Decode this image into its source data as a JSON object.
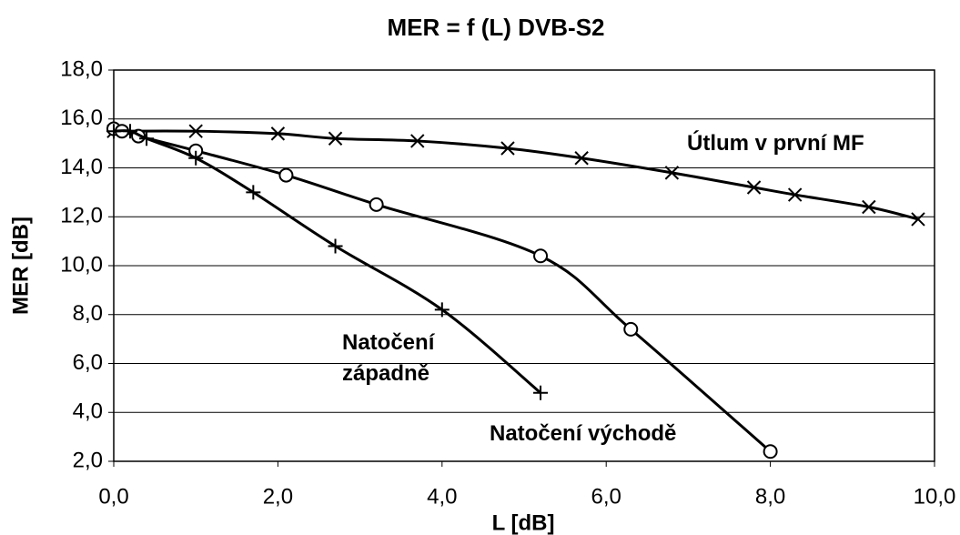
{
  "chart_data": {
    "type": "scatter",
    "title": "MER = f (L)     DVB-S2",
    "xlabel": "L [dB]",
    "ylabel": "MER [dB]",
    "xlim": [
      0,
      10
    ],
    "ylim": [
      2,
      18
    ],
    "xticks": [
      {
        "value": 0,
        "label": "0,0"
      },
      {
        "value": 2,
        "label": "2,0"
      },
      {
        "value": 4,
        "label": "4,0"
      },
      {
        "value": 6,
        "label": "6,0"
      },
      {
        "value": 8,
        "label": "8,0"
      },
      {
        "value": 10,
        "label": "10,0"
      }
    ],
    "yticks": [
      {
        "value": 2,
        "label": "2,0"
      },
      {
        "value": 4,
        "label": "4,0"
      },
      {
        "value": 6,
        "label": "6,0"
      },
      {
        "value": 8,
        "label": "8,0"
      },
      {
        "value": 10,
        "label": "10,0"
      },
      {
        "value": 12,
        "label": "12,0"
      },
      {
        "value": 14,
        "label": "14,0"
      },
      {
        "value": 16,
        "label": "16,0"
      },
      {
        "value": 18,
        "label": "18,0"
      }
    ],
    "grid": true,
    "series": [
      {
        "name": "Útlum v první MF",
        "color": "#000000",
        "marker": "x",
        "x": [
          0,
          1.0,
          2.0,
          2.7,
          3.7,
          4.8,
          5.7,
          6.8,
          7.8,
          8.3,
          9.2,
          9.8
        ],
        "values": [
          15.5,
          15.5,
          15.4,
          15.2,
          15.1,
          14.8,
          14.4,
          13.8,
          13.2,
          12.9,
          12.4,
          11.9
        ]
      },
      {
        "name": "Natočení východě",
        "color": "#000000",
        "marker": "o",
        "x": [
          0,
          0.1,
          0.3,
          1.0,
          2.1,
          3.2,
          5.2,
          6.3,
          8.0
        ],
        "values": [
          15.6,
          15.5,
          15.3,
          14.7,
          13.7,
          12.5,
          10.4,
          7.4,
          2.4
        ]
      },
      {
        "name": "Natočení\nzápadně",
        "color": "#000000",
        "marker": "+",
        "x": [
          0,
          0.2,
          0.4,
          1.0,
          1.7,
          2.7,
          4.0,
          5.2
        ],
        "values": [
          15.5,
          15.5,
          15.2,
          14.4,
          13.0,
          10.8,
          8.2,
          4.8
        ]
      }
    ]
  }
}
